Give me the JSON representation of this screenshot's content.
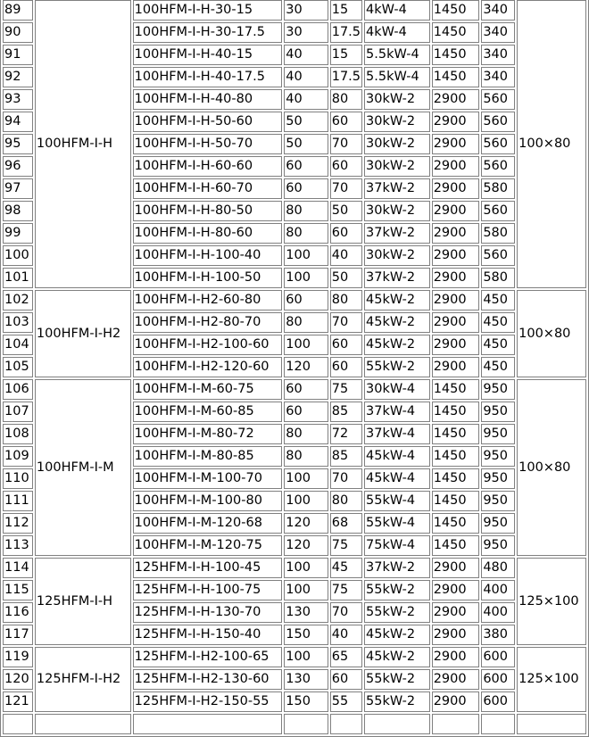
{
  "groups": [
    {
      "series": "100HFM-I-H",
      "size": "100×80",
      "rows": [
        [
          "89",
          "100HFM-I-H-30-15",
          "30",
          "15",
          "4kW-4",
          "1450",
          "340"
        ],
        [
          "90",
          "100HFM-I-H-30-17.5",
          "30",
          "17.5",
          "4kW-4",
          "1450",
          "340"
        ],
        [
          "91",
          "100HFM-I-H-40-15",
          "40",
          "15",
          "5.5kW-4",
          "1450",
          "340"
        ],
        [
          "92",
          "100HFM-I-H-40-17.5",
          "40",
          "17.5",
          "5.5kW-4",
          "1450",
          "340"
        ],
        [
          "93",
          "100HFM-I-H-40-80",
          "40",
          "80",
          "30kW-2",
          "2900",
          "560"
        ],
        [
          "94",
          "100HFM-I-H-50-60",
          "50",
          "60",
          "30kW-2",
          "2900",
          "560"
        ],
        [
          "95",
          "100HFM-I-H-50-70",
          "50",
          "70",
          "30kW-2",
          "2900",
          "560"
        ],
        [
          "96",
          "100HFM-I-H-60-60",
          "60",
          "60",
          "30kW-2",
          "2900",
          "560"
        ],
        [
          "97",
          "100HFM-I-H-60-70",
          "60",
          "70",
          "37kW-2",
          "2900",
          "580"
        ],
        [
          "98",
          "100HFM-I-H-80-50",
          "80",
          "50",
          "30kW-2",
          "2900",
          "560"
        ],
        [
          "99",
          "100HFM-I-H-80-60",
          "80",
          "60",
          "37kW-2",
          "2900",
          "580"
        ],
        [
          "100",
          "100HFM-I-H-100-40",
          "100",
          "40",
          "30kW-2",
          "2900",
          "560"
        ],
        [
          "101",
          "100HFM-I-H-100-50",
          "100",
          "50",
          "37kW-2",
          "2900",
          "580"
        ]
      ]
    },
    {
      "series": "100HFM-I-H2",
      "size": "100×80",
      "rows": [
        [
          "102",
          "100HFM-I-H2-60-80",
          "60",
          "80",
          "45kW-2",
          "2900",
          "450"
        ],
        [
          "103",
          "100HFM-I-H2-80-70",
          "80",
          "70",
          "45kW-2",
          "2900",
          "450"
        ],
        [
          "104",
          "100HFM-I-H2-100-60",
          "100",
          "60",
          "45kW-2",
          "2900",
          "450"
        ],
        [
          "105",
          "100HFM-I-H2-120-60",
          "120",
          "60",
          "55kW-2",
          "2900",
          "450"
        ]
      ]
    },
    {
      "series": "100HFM-I-M",
      "size": "100×80",
      "rows": [
        [
          "106",
          "100HFM-I-M-60-75",
          "60",
          "75",
          "30kW-4",
          "1450",
          "950"
        ],
        [
          "107",
          "100HFM-I-M-60-85",
          "60",
          "85",
          "37kW-4",
          "1450",
          "950"
        ],
        [
          "108",
          "100HFM-I-M-80-72",
          "80",
          "72",
          "37kW-4",
          "1450",
          "950"
        ],
        [
          "109",
          "100HFM-I-M-80-85",
          "80",
          "85",
          "45kW-4",
          "1450",
          "950"
        ],
        [
          "110",
          "100HFM-I-M-100-70",
          "100",
          "70",
          "45kW-4",
          "1450",
          "950"
        ],
        [
          "111",
          "100HFM-I-M-100-80",
          "100",
          "80",
          "55kW-4",
          "1450",
          "950"
        ],
        [
          "112",
          "100HFM-I-M-120-68",
          "120",
          "68",
          "55kW-4",
          "1450",
          "950"
        ],
        [
          "113",
          "100HFM-I-M-120-75",
          "120",
          "75",
          "75kW-4",
          "1450",
          "950"
        ]
      ]
    },
    {
      "series": "125HFM-I-H",
      "size": "125×100",
      "rows": [
        [
          "114",
          "125HFM-I-H-100-45",
          "100",
          "45",
          "37kW-2",
          "2900",
          "480"
        ],
        [
          "115",
          "125HFM-I-H-100-75",
          "100",
          "75",
          "55kW-2",
          "2900",
          "400"
        ],
        [
          "116",
          "125HFM-I-H-130-70",
          "130",
          "70",
          "55kW-2",
          "2900",
          "400"
        ],
        [
          "117",
          "125HFM-I-H-150-40",
          "150",
          "40",
          "45kW-2",
          "2900",
          "380"
        ]
      ]
    },
    {
      "series": "125HFM-I-H2",
      "size": "125×100",
      "rows": [
        [
          "119",
          "125HFM-I-H2-100-65",
          "100",
          "65",
          "45kW-2",
          "2900",
          "600"
        ],
        [
          "120",
          "125HFM-I-H2-130-60",
          "130",
          "60",
          "55kW-2",
          "2900",
          "600"
        ],
        [
          "121",
          "125HFM-I-H2-150-55",
          "150",
          "55",
          "55kW-2",
          "2900",
          "600"
        ]
      ]
    }
  ]
}
